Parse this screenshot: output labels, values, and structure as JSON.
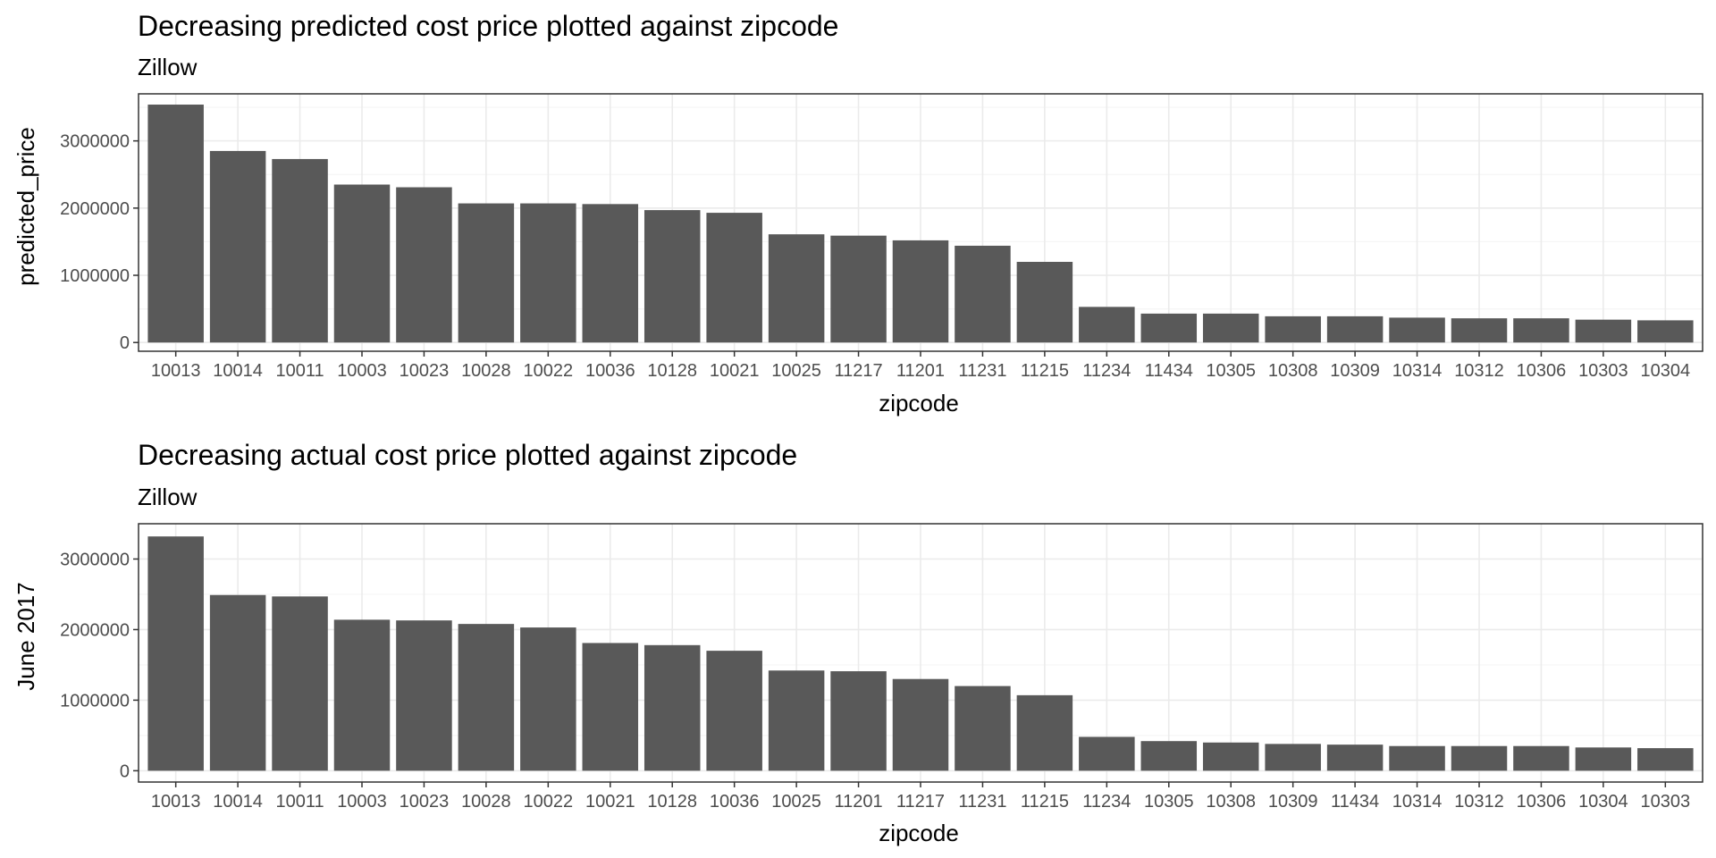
{
  "colors": {
    "bar": "#595959",
    "grid_major": "#ebebeb",
    "grid_minor": "#f5f5f5",
    "panel_border": "#333333",
    "tick_text": "#4d4d4d",
    "background": "#ffffff"
  },
  "chart_data": [
    {
      "type": "bar",
      "title": "Decreasing predicted cost price plotted against zipcode",
      "subtitle": "Zillow",
      "xlabel": "zipcode",
      "ylabel": "predicted_price",
      "ylim": [
        -130000,
        3700000
      ],
      "yticks": [
        0,
        1000000,
        2000000,
        3000000
      ],
      "ytick_labels": [
        "0",
        "1000000",
        "2000000",
        "3000000"
      ],
      "grid": true,
      "categories": [
        "10013",
        "10014",
        "10011",
        "10003",
        "10023",
        "10028",
        "10022",
        "10036",
        "10128",
        "10021",
        "10025",
        "11217",
        "11201",
        "11231",
        "11215",
        "11234",
        "11434",
        "10305",
        "10308",
        "10309",
        "10314",
        "10312",
        "10306",
        "10303",
        "10304"
      ],
      "values": [
        3540000,
        2850000,
        2730000,
        2350000,
        2310000,
        2070000,
        2070000,
        2060000,
        1970000,
        1930000,
        1610000,
        1590000,
        1520000,
        1440000,
        1200000,
        530000,
        430000,
        430000,
        390000,
        390000,
        370000,
        360000,
        360000,
        340000,
        330000
      ]
    },
    {
      "type": "bar",
      "title": "Decreasing actual cost price plotted against zipcode",
      "subtitle": "Zillow",
      "xlabel": "zipcode",
      "ylabel": "June 2017",
      "ylim": [
        -160000,
        3500000
      ],
      "yticks": [
        0,
        1000000,
        2000000,
        3000000
      ],
      "ytick_labels": [
        "0",
        "1000000",
        "2000000",
        "3000000"
      ],
      "grid": true,
      "categories": [
        "10013",
        "10014",
        "10011",
        "10003",
        "10023",
        "10028",
        "10022",
        "10021",
        "10128",
        "10036",
        "10025",
        "11201",
        "11217",
        "11231",
        "11215",
        "11234",
        "10305",
        "10308",
        "10309",
        "11434",
        "10314",
        "10312",
        "10306",
        "10304",
        "10303"
      ],
      "values": [
        3320000,
        2490000,
        2470000,
        2140000,
        2130000,
        2080000,
        2030000,
        1810000,
        1780000,
        1700000,
        1420000,
        1410000,
        1300000,
        1200000,
        1070000,
        480000,
        420000,
        400000,
        380000,
        370000,
        350000,
        350000,
        350000,
        330000,
        320000
      ]
    }
  ]
}
